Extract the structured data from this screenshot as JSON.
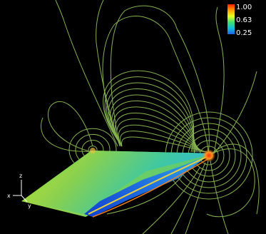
{
  "colorbar": {
    "max_label": "1.00",
    "mid_label": "0.63",
    "min_label": "0.25",
    "colors": [
      "#ff2000",
      "#ffa000",
      "#e8ff20",
      "#40e070",
      "#10c0d8",
      "#2060e8"
    ]
  },
  "axes_triad": {
    "x_label": "x",
    "y_label": "y",
    "z_label": "z"
  },
  "contour_color": "#9ed060",
  "background": "#000000"
}
